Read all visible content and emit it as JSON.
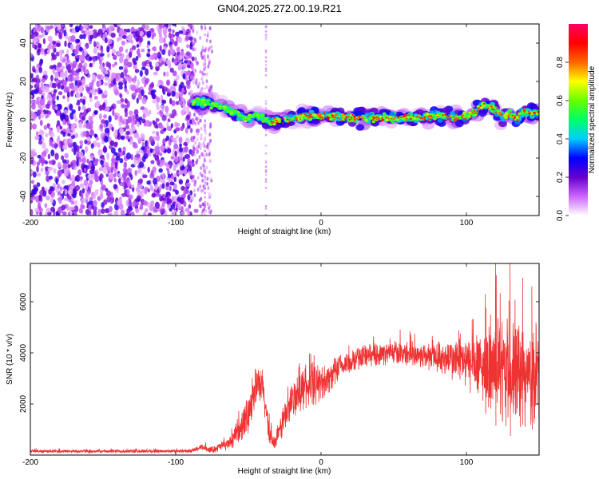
{
  "title": "GN04.2025.272.00.19.R21",
  "chart_data": [
    {
      "type": "heatmap",
      "xlabel": "Height of straight line (km)",
      "ylabel": "Frequency (Hz)",
      "xlim": [
        -200,
        150
      ],
      "ylim": [
        -50,
        50
      ],
      "x_ticks": [
        -200,
        -100,
        0,
        100
      ],
      "x_tick_labels": [
        "-200",
        "-100",
        "0",
        "100"
      ],
      "y_ticks": [
        -40,
        -20,
        0,
        20,
        40
      ],
      "y_tick_labels": [
        "-40",
        "-20",
        "0",
        "20",
        "40"
      ],
      "colorbar": {
        "label": "Normalized spectral amplitude",
        "range": [
          0,
          1
        ],
        "ticks": [
          0.0,
          0.2,
          0.4,
          0.6,
          0.8
        ],
        "tick_labels": [
          "0.0",
          "0.2",
          "0.4",
          "0.6",
          "0.8"
        ],
        "colors": [
          "#ffffff",
          "#cc66ff",
          "#6600cc",
          "#0000ff",
          "#00ccff",
          "#00ff66",
          "#66ff00",
          "#ffff00",
          "#ff6600",
          "#ff0000",
          "#ff0066"
        ]
      },
      "noise_region": {
        "x_range": [
          -200,
          -88
        ],
        "sparse_to": -75,
        "streaks_at": [
          -80,
          -38
        ]
      },
      "signal_trace": [
        {
          "x": -88,
          "y": 10
        },
        {
          "x": -75,
          "y": 8
        },
        {
          "x": -65,
          "y": 6
        },
        {
          "x": -55,
          "y": 2
        },
        {
          "x": -50,
          "y": 0
        },
        {
          "x": -45,
          "y": 3
        },
        {
          "x": -40,
          "y": 1
        },
        {
          "x": -35,
          "y": -1
        },
        {
          "x": -25,
          "y": 0
        },
        {
          "x": -10,
          "y": 2
        },
        {
          "x": 0,
          "y": 2
        },
        {
          "x": 20,
          "y": 1
        },
        {
          "x": 40,
          "y": 1
        },
        {
          "x": 60,
          "y": 1
        },
        {
          "x": 80,
          "y": 2
        },
        {
          "x": 95,
          "y": 1
        },
        {
          "x": 105,
          "y": 3
        },
        {
          "x": 112,
          "y": 8
        },
        {
          "x": 118,
          "y": 6
        },
        {
          "x": 125,
          "y": 2
        },
        {
          "x": 130,
          "y": 3
        },
        {
          "x": 135,
          "y": 0
        },
        {
          "x": 140,
          "y": 5
        },
        {
          "x": 145,
          "y": 3
        },
        {
          "x": 150,
          "y": 4
        }
      ],
      "trace_color_note": "red along center, green/cyan/blue edges, purple halo"
    },
    {
      "type": "line",
      "xlabel": "Height of straight line (km)",
      "ylabel": "SNR (10 * v/v)",
      "xlim": [
        -200,
        150
      ],
      "ylim": [
        0,
        7500
      ],
      "x_ticks": [
        -200,
        -100,
        0,
        100
      ],
      "x_tick_labels": [
        "-200",
        "-100",
        "0",
        "100"
      ],
      "y_ticks": [
        2000,
        4000,
        6000
      ],
      "y_tick_labels": [
        "2000",
        "4000",
        "6000"
      ],
      "line_color": "#ee3333",
      "envelope": [
        {
          "x": -200,
          "mean": 150,
          "spread": 80
        },
        {
          "x": -90,
          "mean": 150,
          "spread": 80
        },
        {
          "x": -82,
          "mean": 300,
          "spread": 150
        },
        {
          "x": -75,
          "mean": 200,
          "spread": 150
        },
        {
          "x": -62,
          "mean": 500,
          "spread": 300
        },
        {
          "x": -52,
          "mean": 1300,
          "spread": 800
        },
        {
          "x": -45,
          "mean": 2700,
          "spread": 900
        },
        {
          "x": -40,
          "mean": 2600,
          "spread": 900
        },
        {
          "x": -36,
          "mean": 900,
          "spread": 500
        },
        {
          "x": -32,
          "mean": 400,
          "spread": 300
        },
        {
          "x": -25,
          "mean": 1500,
          "spread": 800
        },
        {
          "x": -15,
          "mean": 2600,
          "spread": 1000
        },
        {
          "x": -5,
          "mean": 2700,
          "spread": 900
        },
        {
          "x": 5,
          "mean": 3000,
          "spread": 700
        },
        {
          "x": 15,
          "mean": 3500,
          "spread": 600
        },
        {
          "x": 30,
          "mean": 3900,
          "spread": 500
        },
        {
          "x": 50,
          "mean": 4000,
          "spread": 500
        },
        {
          "x": 70,
          "mean": 3900,
          "spread": 600
        },
        {
          "x": 85,
          "mean": 3800,
          "spread": 800
        },
        {
          "x": 100,
          "mean": 3600,
          "spread": 1200
        },
        {
          "x": 115,
          "mean": 3300,
          "spread": 1800
        },
        {
          "x": 125,
          "mean": 3200,
          "spread": 2400
        },
        {
          "x": 135,
          "mean": 3100,
          "spread": 2400
        },
        {
          "x": 145,
          "mean": 3000,
          "spread": 2000
        },
        {
          "x": 150,
          "mean": 3000,
          "spread": 1800
        }
      ],
      "notable_peaks": [
        {
          "x": 113,
          "y": 6300
        },
        {
          "x": 120,
          "y": 7500
        },
        {
          "x": 130,
          "y": 7500
        },
        {
          "x": 145,
          "y": 6600
        }
      ]
    }
  ]
}
